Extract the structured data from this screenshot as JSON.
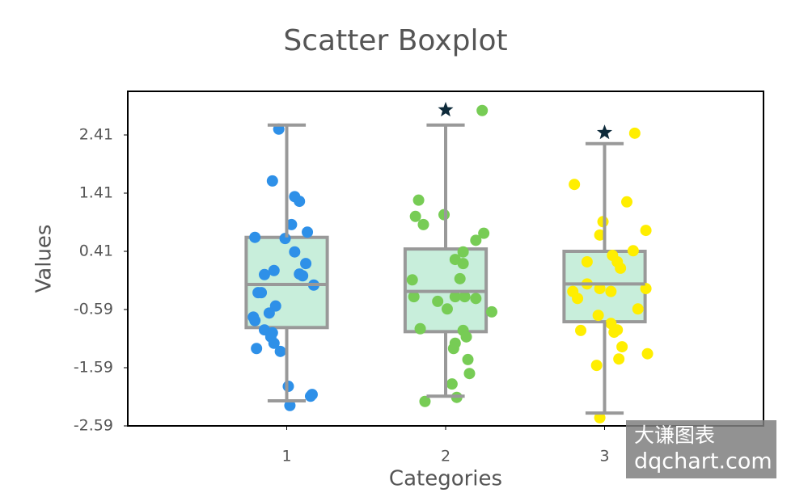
{
  "chart_data": {
    "type": "boxplot",
    "title": "Scatter Boxplot",
    "xlabel": "Categories",
    "ylabel": "Values",
    "xlim": [
      0,
      4
    ],
    "xticks": [
      1,
      2,
      3
    ],
    "ylim": [
      -2.59,
      3.16
    ],
    "yticks": [
      -2.59,
      -1.59,
      -0.59,
      0.41,
      1.41,
      2.41
    ],
    "box_color": "#c8eedb",
    "box_edge_color": "#999999",
    "outlier_color": "#0d2a3a",
    "boxes": [
      {
        "whisker_low": -2.16,
        "q1": -0.9,
        "median": -0.16,
        "q3": 0.65,
        "whisker_high": 2.58,
        "outliers": []
      },
      {
        "whisker_low": -2.08,
        "q1": -0.97,
        "median": -0.28,
        "q3": 0.45,
        "whisker_high": 2.58,
        "outliers": [
          2.84
        ]
      },
      {
        "whisker_low": -2.37,
        "q1": -0.8,
        "median": -0.15,
        "q3": 0.41,
        "whisker_high": 2.26,
        "outliers": [
          2.45
        ]
      }
    ],
    "series": [
      {
        "color": "#2e90e8",
        "x": [
          0.95,
          0.91,
          1.05,
          1.08,
          1.03,
          1.13,
          0.8,
          0.99,
          1.05,
          1.12,
          0.92,
          0.86,
          1.08,
          1.1,
          1.17,
          0.82,
          0.84,
          0.93,
          0.89,
          0.79,
          0.8,
          0.86,
          0.91,
          0.9,
          0.92,
          0.96,
          0.81,
          1.01,
          1.16,
          1.15,
          1.02
        ],
        "y": [
          2.51,
          1.62,
          1.35,
          1.27,
          0.87,
          0.74,
          0.65,
          0.63,
          0.4,
          0.2,
          0.08,
          0.01,
          0.02,
          -0.01,
          -0.17,
          -0.3,
          -0.3,
          -0.53,
          -0.65,
          -0.72,
          -0.78,
          -0.94,
          -0.99,
          -1.06,
          -1.17,
          -1.31,
          -1.26,
          -1.91,
          -2.05,
          -2.08,
          -2.24
        ]
      },
      {
        "color": "#77cc55",
        "x": [
          2.23,
          1.83,
          1.81,
          1.99,
          1.86,
          2.24,
          2.19,
          2.11,
          2.06,
          2.11,
          1.79,
          2.09,
          1.8,
          1.95,
          2.06,
          2.12,
          2.19,
          2.01,
          2.29,
          1.84,
          2.11,
          2.13,
          2.06,
          2.05,
          2.14,
          2.15,
          2.04,
          2.07,
          1.87
        ],
        "y": [
          2.83,
          1.29,
          1.01,
          1.04,
          0.87,
          0.72,
          0.6,
          0.4,
          0.27,
          0.2,
          -0.08,
          -0.06,
          -0.37,
          -0.45,
          -0.37,
          -0.37,
          -0.4,
          -0.58,
          -0.63,
          -0.92,
          -0.95,
          -1.06,
          -1.17,
          -1.26,
          -1.45,
          -1.69,
          -1.87,
          -2.1,
          -2.17
        ]
      },
      {
        "color": "#ffee00",
        "x": [
          3.19,
          2.81,
          3.14,
          2.99,
          2.97,
          3.18,
          3.26,
          2.89,
          3.05,
          3.08,
          3.1,
          2.8,
          2.83,
          2.89,
          2.97,
          3.04,
          3.26,
          2.96,
          3.21,
          2.85,
          3.04,
          3.08,
          3.06,
          3.11,
          3.27,
          3.09,
          2.95,
          2.97
        ],
        "y": [
          2.44,
          1.56,
          1.26,
          0.92,
          0.69,
          0.42,
          0.77,
          0.23,
          0.34,
          0.23,
          0.12,
          -0.28,
          -0.4,
          -0.15,
          -0.23,
          -0.28,
          -0.23,
          -0.69,
          -0.58,
          -0.95,
          -0.83,
          -0.94,
          -0.98,
          -1.23,
          -1.35,
          -1.44,
          -1.55,
          -2.45
        ]
      }
    ],
    "watermark": {
      "line1": "大谦图表",
      "line2": "dqchart.com"
    }
  }
}
